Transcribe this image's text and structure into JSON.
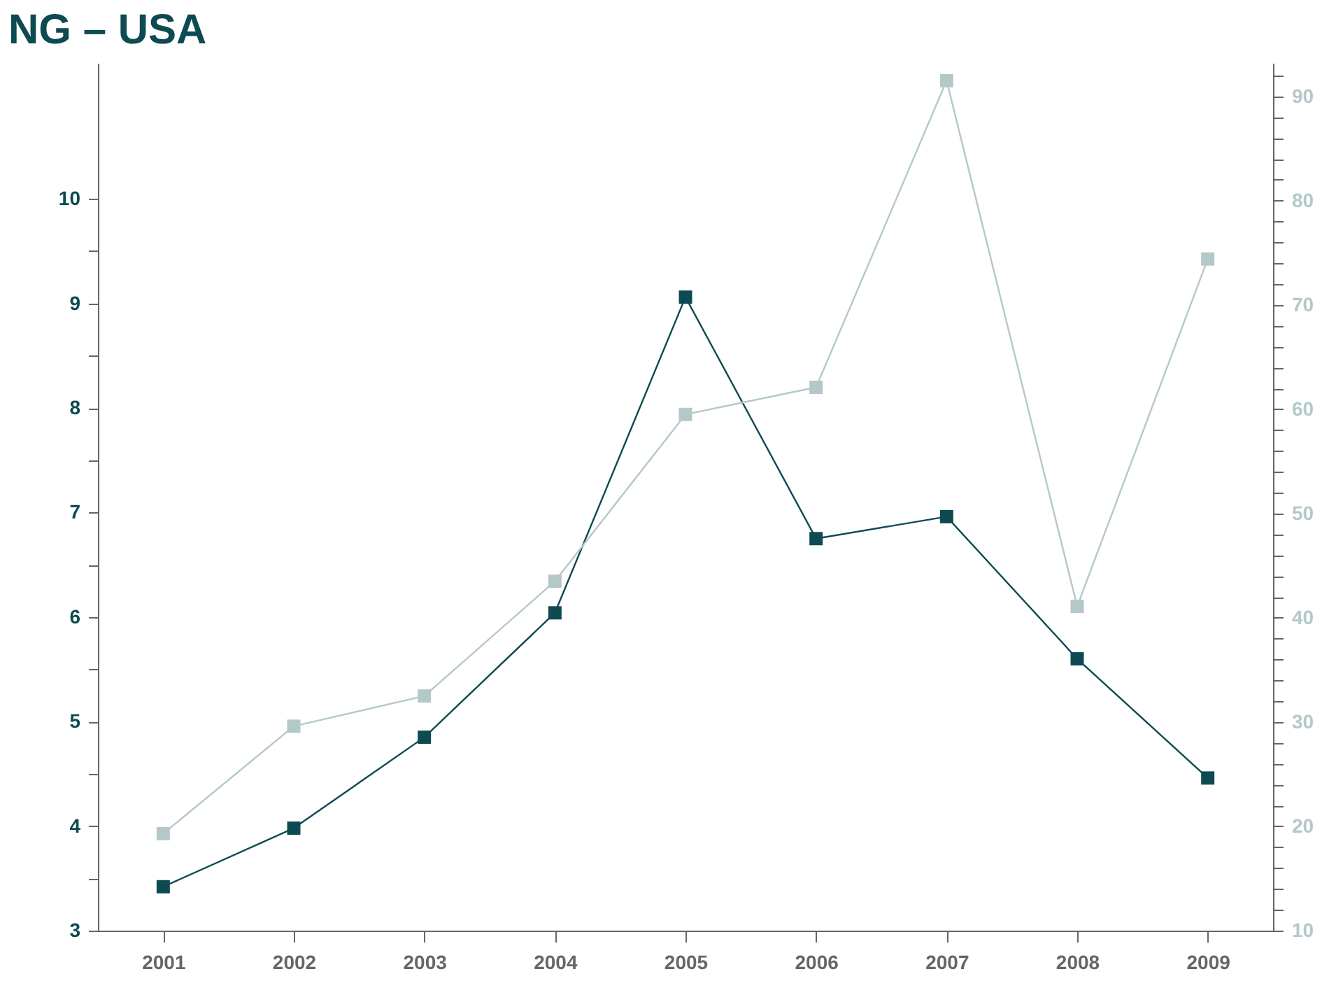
{
  "chart_data": {
    "type": "line",
    "title": "NG – USA",
    "categories": [
      "2001",
      "2002",
      "2003",
      "2004",
      "2005",
      "2006",
      "2007",
      "2008",
      "2009"
    ],
    "series": [
      {
        "color": "#0d4a52",
        "values": [
          3.42,
          3.98,
          4.85,
          6.04,
          9.06,
          6.75,
          6.96,
          5.6,
          4.46
        ]
      },
      {
        "color": "#b4c8c9",
        "axis": "y2",
        "values": [
          19.3,
          29.6,
          32.5,
          43.5,
          59.5,
          62.1,
          91.5,
          41.1,
          74.4
        ]
      }
    ],
    "ylim": [
      3,
      11.3
    ],
    "yticks": [
      3,
      {
        "value": 3.5,
        "label": null
      },
      4,
      {
        "value": 4.5,
        "label": null
      },
      5,
      {
        "value": 5.5,
        "label": null
      },
      6,
      {
        "value": 6.5,
        "label": null
      },
      7,
      {
        "value": 7.5,
        "label": null
      },
      8,
      {
        "value": 8.5,
        "label": null
      },
      9,
      {
        "value": 9.5,
        "label": null
      },
      10
    ],
    "y2lim": [
      10,
      93.2
    ],
    "y2ticks": [
      10,
      {
        "value": 12,
        "label": null
      },
      {
        "value": 14,
        "label": null
      },
      {
        "value": 16,
        "label": null
      },
      {
        "value": 18,
        "label": null
      },
      20,
      {
        "value": 22,
        "label": null
      },
      {
        "value": 24,
        "label": null
      },
      {
        "value": 26,
        "label": null
      },
      {
        "value": 28,
        "label": null
      },
      30,
      {
        "value": 32,
        "label": null
      },
      {
        "value": 34,
        "label": null
      },
      {
        "value": 36,
        "label": null
      },
      {
        "value": 38,
        "label": null
      },
      40,
      {
        "value": 42,
        "label": null
      },
      {
        "value": 44,
        "label": null
      },
      {
        "value": 46,
        "label": null
      },
      {
        "value": 48,
        "label": null
      },
      50,
      {
        "value": 52,
        "label": null
      },
      {
        "value": 54,
        "label": null
      },
      {
        "value": 56,
        "label": null
      },
      {
        "value": 58,
        "label": null
      },
      60,
      {
        "value": 62,
        "label": null
      },
      {
        "value": 64,
        "label": null
      },
      {
        "value": 66,
        "label": null
      },
      {
        "value": 68,
        "label": null
      },
      70,
      {
        "value": 72,
        "label": null
      },
      {
        "value": 74,
        "label": null
      },
      {
        "value": 76,
        "label": null
      },
      {
        "value": 78,
        "label": null
      },
      80,
      {
        "value": 82,
        "label": null
      },
      {
        "value": 84,
        "label": null
      },
      {
        "value": 86,
        "label": null
      },
      {
        "value": 88,
        "label": null
      },
      90,
      {
        "value": 92,
        "label": null
      }
    ],
    "marker": "square",
    "grid": false
  }
}
